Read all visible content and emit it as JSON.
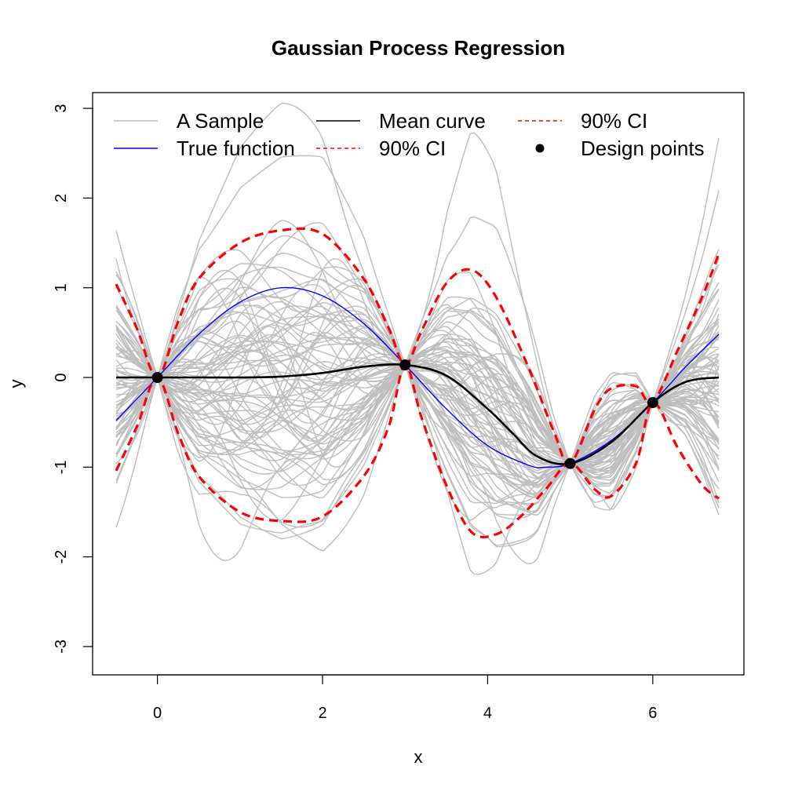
{
  "chart_data": {
    "type": "line",
    "title": "Gaussian Process Regression",
    "xlabel": "x",
    "ylabel": "y",
    "xlim": [
      -0.5,
      6.8
    ],
    "ylim": [
      -3.3,
      3.2
    ],
    "xticks": [
      0,
      2,
      4,
      6
    ],
    "yticks": [
      -3,
      -2,
      -1,
      0,
      1,
      2,
      3
    ],
    "xtick_labels": [
      "0",
      "2",
      "4",
      "6"
    ],
    "ytick_labels": [
      "-3",
      "-2",
      "-1",
      "0",
      "1",
      "2",
      "3"
    ],
    "grid": false,
    "legend_position": "top",
    "legend": [
      {
        "label": "A Sample",
        "color": "#bebebe",
        "style": "solid"
      },
      {
        "label": "True function",
        "color": "#0000ff",
        "style": "solid"
      },
      {
        "label": "Mean curve",
        "color": "#000000",
        "style": "solid"
      },
      {
        "label": "90% CI",
        "color": "#ff0000",
        "style": "dashed"
      },
      {
        "label": "90% CI",
        "color": "#ff0000",
        "style": "dashed"
      },
      {
        "label": "Design points",
        "color": "#000000",
        "style": "point"
      }
    ],
    "design_points": {
      "x": [
        0,
        3,
        5,
        6
      ],
      "y": [
        0,
        0.14,
        -0.96,
        -0.28
      ]
    },
    "series": [
      {
        "name": "True function",
        "color": "#0000ff",
        "x": [
          -0.5,
          0,
          0.5,
          1.0,
          1.5,
          2.0,
          2.5,
          3.0,
          3.5,
          4.0,
          4.5,
          4.7,
          5.0,
          5.5,
          6.0,
          6.4,
          6.8
        ],
        "y": [
          -0.48,
          0,
          0.48,
          0.84,
          1.0,
          0.91,
          0.6,
          0.14,
          -0.35,
          -0.76,
          -0.98,
          -1.0,
          -0.96,
          -0.7,
          -0.28,
          0.12,
          0.48
        ]
      },
      {
        "name": "Mean curve",
        "color": "#000000",
        "x": [
          -0.5,
          0,
          0.5,
          1.0,
          1.5,
          2.0,
          2.5,
          3.0,
          3.5,
          4.0,
          4.3,
          4.6,
          5.0,
          5.5,
          6.0,
          6.4,
          6.8
        ],
        "y": [
          0,
          0,
          0,
          0,
          0.01,
          0.05,
          0.12,
          0.14,
          0.02,
          -0.35,
          -0.62,
          -0.88,
          -0.96,
          -0.72,
          -0.28,
          -0.05,
          0
        ]
      },
      {
        "name": "90% CI",
        "color": "#ff0000",
        "dashed": true,
        "x": [
          -0.5,
          -0.25,
          0,
          0.25,
          0.5,
          1.0,
          1.5,
          2.0,
          2.5,
          2.8,
          3.0,
          3.2,
          3.5,
          3.8,
          4.1,
          4.5,
          4.8,
          5.0,
          5.3,
          5.5,
          5.8,
          6.0,
          6.3,
          6.6,
          6.8
        ],
        "y": [
          1.04,
          0.55,
          0,
          0.62,
          1.1,
          1.5,
          1.64,
          1.6,
          1.1,
          0.55,
          0.14,
          0.52,
          1.05,
          1.2,
          0.9,
          0.1,
          -0.6,
          -0.96,
          -0.35,
          -0.12,
          -0.1,
          -0.28,
          0.3,
          0.9,
          1.38
        ]
      },
      {
        "name": "90% CI",
        "color": "#ff0000",
        "dashed": true,
        "x": [
          -0.5,
          -0.25,
          0,
          0.25,
          0.5,
          1.0,
          1.5,
          2.0,
          2.5,
          2.8,
          3.0,
          3.2,
          3.5,
          3.8,
          4.1,
          4.4,
          4.7,
          5.0,
          5.3,
          5.5,
          5.8,
          6.0,
          6.3,
          6.6,
          6.8
        ],
        "y": [
          -1.04,
          -0.55,
          0,
          -0.62,
          -1.1,
          -1.5,
          -1.6,
          -1.55,
          -1.1,
          -0.55,
          0.14,
          -0.45,
          -1.2,
          -1.72,
          -1.75,
          -1.55,
          -1.25,
          -0.96,
          -1.25,
          -1.32,
          -0.95,
          -0.28,
          -0.78,
          -1.2,
          -1.35
        ]
      }
    ]
  }
}
